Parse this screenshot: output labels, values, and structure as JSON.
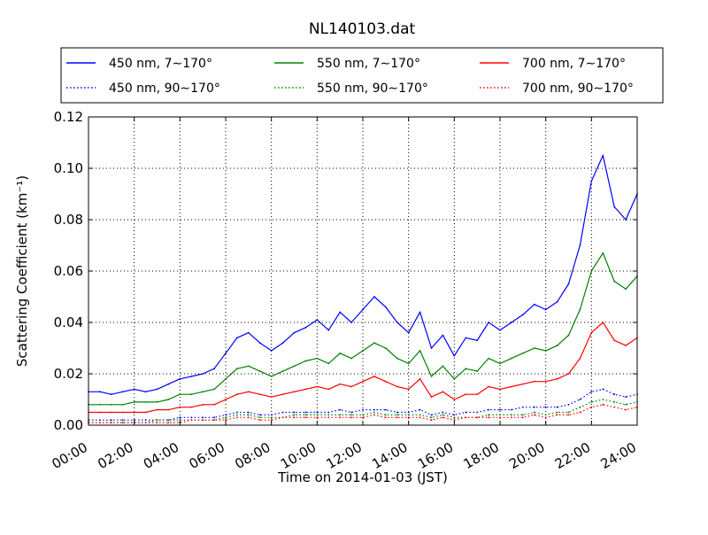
{
  "chart_data": {
    "type": "line",
    "title": "NL140103.dat",
    "xlabel": "Time on 2014-01-03 (JST)",
    "ylabel": "Scattering Coefficient (km⁻¹)",
    "xlim": [
      "00:00",
      "24:00"
    ],
    "ylim": [
      0.0,
      0.12
    ],
    "x_ticks": [
      "00:00",
      "02:00",
      "04:00",
      "06:00",
      "08:00",
      "10:00",
      "12:00",
      "14:00",
      "16:00",
      "18:00",
      "20:00",
      "22:00",
      "24:00"
    ],
    "y_ticks": [
      "0.00",
      "0.02",
      "0.04",
      "0.06",
      "0.08",
      "0.10",
      "0.12"
    ],
    "grid": true,
    "legend_position": "top",
    "x": [
      "00:00",
      "00:30",
      "01:00",
      "01:30",
      "02:00",
      "02:30",
      "03:00",
      "03:30",
      "04:00",
      "04:30",
      "05:00",
      "05:30",
      "06:00",
      "06:30",
      "07:00",
      "07:30",
      "08:00",
      "08:30",
      "09:00",
      "09:30",
      "10:00",
      "10:30",
      "11:00",
      "11:30",
      "12:00",
      "12:30",
      "13:00",
      "13:30",
      "14:00",
      "14:30",
      "15:00",
      "15:30",
      "16:00",
      "16:30",
      "17:00",
      "17:30",
      "18:00",
      "18:30",
      "19:00",
      "19:30",
      "20:00",
      "20:30",
      "21:00",
      "21:30",
      "22:00",
      "22:30",
      "23:00",
      "23:30",
      "24:00"
    ],
    "series": [
      {
        "name": "450 nm, 7∼170°",
        "color": "#0000ff",
        "style": "solid",
        "values": [
          0.013,
          0.013,
          0.012,
          0.013,
          0.014,
          0.013,
          0.014,
          0.016,
          0.018,
          0.019,
          0.02,
          0.022,
          0.028,
          0.034,
          0.036,
          0.032,
          0.029,
          0.032,
          0.036,
          0.038,
          0.041,
          0.037,
          0.044,
          0.04,
          0.045,
          0.05,
          0.046,
          0.04,
          0.036,
          0.044,
          0.03,
          0.035,
          0.027,
          0.034,
          0.033,
          0.04,
          0.037,
          0.04,
          0.043,
          0.047,
          0.045,
          0.048,
          0.055,
          0.07,
          0.095,
          0.105,
          0.085,
          0.08,
          0.09
        ]
      },
      {
        "name": "450 nm, 90∼170°",
        "color": "#0000ff",
        "style": "dotted",
        "values": [
          0.002,
          0.002,
          0.002,
          0.002,
          0.002,
          0.002,
          0.002,
          0.002,
          0.003,
          0.003,
          0.003,
          0.003,
          0.004,
          0.005,
          0.005,
          0.004,
          0.004,
          0.005,
          0.005,
          0.005,
          0.005,
          0.005,
          0.006,
          0.005,
          0.006,
          0.006,
          0.006,
          0.005,
          0.005,
          0.006,
          0.004,
          0.005,
          0.004,
          0.005,
          0.005,
          0.006,
          0.006,
          0.006,
          0.007,
          0.007,
          0.007,
          0.007,
          0.008,
          0.01,
          0.013,
          0.014,
          0.012,
          0.011,
          0.012
        ]
      },
      {
        "name": "550 nm, 7∼170°",
        "color": "#008000",
        "style": "solid",
        "values": [
          0.008,
          0.008,
          0.008,
          0.008,
          0.009,
          0.009,
          0.009,
          0.01,
          0.012,
          0.012,
          0.013,
          0.014,
          0.018,
          0.022,
          0.023,
          0.021,
          0.019,
          0.021,
          0.023,
          0.025,
          0.026,
          0.024,
          0.028,
          0.026,
          0.029,
          0.032,
          0.03,
          0.026,
          0.024,
          0.029,
          0.019,
          0.023,
          0.018,
          0.022,
          0.021,
          0.026,
          0.024,
          0.026,
          0.028,
          0.03,
          0.029,
          0.031,
          0.035,
          0.045,
          0.06,
          0.067,
          0.056,
          0.053,
          0.058
        ]
      },
      {
        "name": "550 nm, 90∼170°",
        "color": "#008000",
        "style": "dotted",
        "values": [
          0.001,
          0.001,
          0.001,
          0.001,
          0.001,
          0.001,
          0.002,
          0.002,
          0.002,
          0.002,
          0.002,
          0.002,
          0.003,
          0.004,
          0.004,
          0.003,
          0.003,
          0.003,
          0.004,
          0.004,
          0.004,
          0.004,
          0.004,
          0.004,
          0.004,
          0.005,
          0.004,
          0.004,
          0.004,
          0.004,
          0.003,
          0.004,
          0.003,
          0.003,
          0.003,
          0.004,
          0.004,
          0.004,
          0.004,
          0.005,
          0.004,
          0.005,
          0.005,
          0.007,
          0.009,
          0.01,
          0.009,
          0.008,
          0.009
        ]
      },
      {
        "name": "700 nm, 7∼170°",
        "color": "#ff0000",
        "style": "solid",
        "values": [
          0.005,
          0.005,
          0.005,
          0.005,
          0.005,
          0.005,
          0.006,
          0.006,
          0.007,
          0.007,
          0.008,
          0.008,
          0.01,
          0.012,
          0.013,
          0.012,
          0.011,
          0.012,
          0.013,
          0.014,
          0.015,
          0.014,
          0.016,
          0.015,
          0.017,
          0.019,
          0.017,
          0.015,
          0.014,
          0.018,
          0.011,
          0.013,
          0.01,
          0.012,
          0.012,
          0.015,
          0.014,
          0.015,
          0.016,
          0.017,
          0.017,
          0.018,
          0.02,
          0.026,
          0.036,
          0.04,
          0.033,
          0.031,
          0.034
        ]
      },
      {
        "name": "700 nm, 90∼170°",
        "color": "#ff0000",
        "style": "dotted",
        "values": [
          0.001,
          0.001,
          0.001,
          0.001,
          0.001,
          0.001,
          0.001,
          0.001,
          0.001,
          0.002,
          0.002,
          0.002,
          0.002,
          0.003,
          0.003,
          0.002,
          0.002,
          0.003,
          0.003,
          0.003,
          0.003,
          0.003,
          0.003,
          0.003,
          0.003,
          0.004,
          0.003,
          0.003,
          0.003,
          0.003,
          0.002,
          0.003,
          0.002,
          0.003,
          0.003,
          0.003,
          0.003,
          0.003,
          0.003,
          0.004,
          0.003,
          0.004,
          0.004,
          0.005,
          0.007,
          0.008,
          0.007,
          0.006,
          0.007
        ]
      }
    ]
  }
}
